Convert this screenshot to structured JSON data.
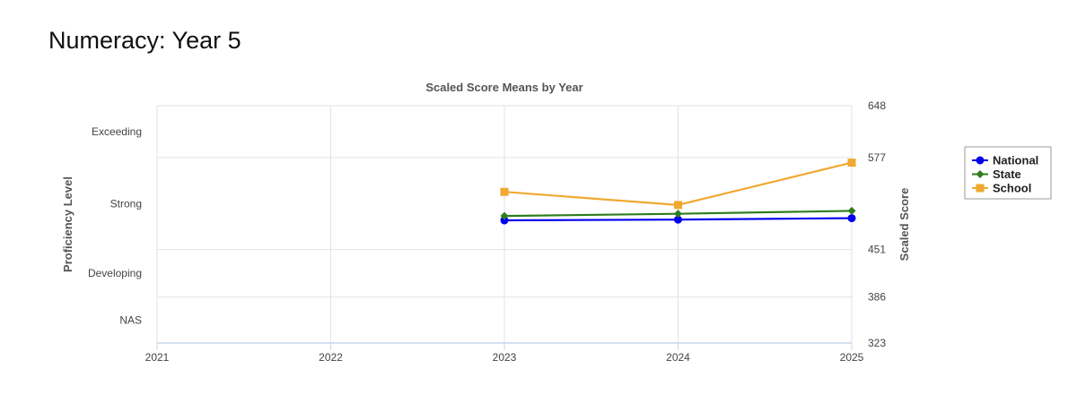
{
  "page": {
    "title": "Numeracy: Year 5"
  },
  "chart_data": {
    "type": "line",
    "title": "Scaled Score Means by Year",
    "xlabel": "",
    "ylabel_left": "Proficiency Level",
    "ylabel_right": "Scaled Score",
    "x_ticks": [
      "2021",
      "2022",
      "2023",
      "2024",
      "2025"
    ],
    "xlim": [
      2021,
      2025
    ],
    "ylim": [
      323,
      648
    ],
    "y_ticks": [
      323,
      386,
      451,
      577,
      648
    ],
    "proficiency_bands": [
      {
        "label": "NAS",
        "center": 354.5
      },
      {
        "label": "Developing",
        "center": 418.5
      },
      {
        "label": "Strong",
        "center": 514
      },
      {
        "label": "Exceeding",
        "center": 612.5
      }
    ],
    "grid": true,
    "legend_position": "right",
    "series": [
      {
        "name": "National",
        "color": "#0000ee",
        "marker": "circle",
        "x": [
          2023,
          2024,
          2025
        ],
        "values": [
          491,
          492,
          494
        ]
      },
      {
        "name": "State",
        "color": "#2e7d1e",
        "marker": "diamond",
        "x": [
          2023,
          2024,
          2025
        ],
        "values": [
          497,
          500,
          504
        ]
      },
      {
        "name": "School",
        "color": "#f0a830",
        "marker": "square",
        "x": [
          2023,
          2024,
          2025
        ],
        "values": [
          530,
          512,
          570
        ]
      }
    ]
  }
}
